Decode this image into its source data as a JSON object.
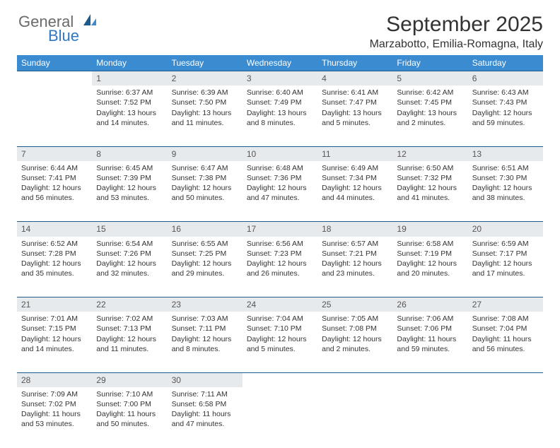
{
  "brand": {
    "part1": "General",
    "part2": "Blue",
    "color1": "#6a6a6a",
    "color2": "#2f78c4"
  },
  "header": {
    "month": "September 2025",
    "location": "Marzabotto, Emilia-Romagna, Italy"
  },
  "colors": {
    "header_bg": "#3b8bd0",
    "header_text": "#ffffff",
    "daynum_bg": "#e7eaed",
    "rule": "#1f5a8a"
  },
  "weekdays": [
    "Sunday",
    "Monday",
    "Tuesday",
    "Wednesday",
    "Thursday",
    "Friday",
    "Saturday"
  ],
  "weeks": [
    [
      null,
      {
        "n": "1",
        "sunrise": "6:37 AM",
        "sunset": "7:52 PM",
        "daylight": "13 hours and 14 minutes."
      },
      {
        "n": "2",
        "sunrise": "6:39 AM",
        "sunset": "7:50 PM",
        "daylight": "13 hours and 11 minutes."
      },
      {
        "n": "3",
        "sunrise": "6:40 AM",
        "sunset": "7:49 PM",
        "daylight": "13 hours and 8 minutes."
      },
      {
        "n": "4",
        "sunrise": "6:41 AM",
        "sunset": "7:47 PM",
        "daylight": "13 hours and 5 minutes."
      },
      {
        "n": "5",
        "sunrise": "6:42 AM",
        "sunset": "7:45 PM",
        "daylight": "13 hours and 2 minutes."
      },
      {
        "n": "6",
        "sunrise": "6:43 AM",
        "sunset": "7:43 PM",
        "daylight": "12 hours and 59 minutes."
      }
    ],
    [
      {
        "n": "7",
        "sunrise": "6:44 AM",
        "sunset": "7:41 PM",
        "daylight": "12 hours and 56 minutes."
      },
      {
        "n": "8",
        "sunrise": "6:45 AM",
        "sunset": "7:39 PM",
        "daylight": "12 hours and 53 minutes."
      },
      {
        "n": "9",
        "sunrise": "6:47 AM",
        "sunset": "7:38 PM",
        "daylight": "12 hours and 50 minutes."
      },
      {
        "n": "10",
        "sunrise": "6:48 AM",
        "sunset": "7:36 PM",
        "daylight": "12 hours and 47 minutes."
      },
      {
        "n": "11",
        "sunrise": "6:49 AM",
        "sunset": "7:34 PM",
        "daylight": "12 hours and 44 minutes."
      },
      {
        "n": "12",
        "sunrise": "6:50 AM",
        "sunset": "7:32 PM",
        "daylight": "12 hours and 41 minutes."
      },
      {
        "n": "13",
        "sunrise": "6:51 AM",
        "sunset": "7:30 PM",
        "daylight": "12 hours and 38 minutes."
      }
    ],
    [
      {
        "n": "14",
        "sunrise": "6:52 AM",
        "sunset": "7:28 PM",
        "daylight": "12 hours and 35 minutes."
      },
      {
        "n": "15",
        "sunrise": "6:54 AM",
        "sunset": "7:26 PM",
        "daylight": "12 hours and 32 minutes."
      },
      {
        "n": "16",
        "sunrise": "6:55 AM",
        "sunset": "7:25 PM",
        "daylight": "12 hours and 29 minutes."
      },
      {
        "n": "17",
        "sunrise": "6:56 AM",
        "sunset": "7:23 PM",
        "daylight": "12 hours and 26 minutes."
      },
      {
        "n": "18",
        "sunrise": "6:57 AM",
        "sunset": "7:21 PM",
        "daylight": "12 hours and 23 minutes."
      },
      {
        "n": "19",
        "sunrise": "6:58 AM",
        "sunset": "7:19 PM",
        "daylight": "12 hours and 20 minutes."
      },
      {
        "n": "20",
        "sunrise": "6:59 AM",
        "sunset": "7:17 PM",
        "daylight": "12 hours and 17 minutes."
      }
    ],
    [
      {
        "n": "21",
        "sunrise": "7:01 AM",
        "sunset": "7:15 PM",
        "daylight": "12 hours and 14 minutes."
      },
      {
        "n": "22",
        "sunrise": "7:02 AM",
        "sunset": "7:13 PM",
        "daylight": "12 hours and 11 minutes."
      },
      {
        "n": "23",
        "sunrise": "7:03 AM",
        "sunset": "7:11 PM",
        "daylight": "12 hours and 8 minutes."
      },
      {
        "n": "24",
        "sunrise": "7:04 AM",
        "sunset": "7:10 PM",
        "daylight": "12 hours and 5 minutes."
      },
      {
        "n": "25",
        "sunrise": "7:05 AM",
        "sunset": "7:08 PM",
        "daylight": "12 hours and 2 minutes."
      },
      {
        "n": "26",
        "sunrise": "7:06 AM",
        "sunset": "7:06 PM",
        "daylight": "11 hours and 59 minutes."
      },
      {
        "n": "27",
        "sunrise": "7:08 AM",
        "sunset": "7:04 PM",
        "daylight": "11 hours and 56 minutes."
      }
    ],
    [
      {
        "n": "28",
        "sunrise": "7:09 AM",
        "sunset": "7:02 PM",
        "daylight": "11 hours and 53 minutes."
      },
      {
        "n": "29",
        "sunrise": "7:10 AM",
        "sunset": "7:00 PM",
        "daylight": "11 hours and 50 minutes."
      },
      {
        "n": "30",
        "sunrise": "7:11 AM",
        "sunset": "6:58 PM",
        "daylight": "11 hours and 47 minutes."
      },
      null,
      null,
      null,
      null
    ]
  ],
  "labels": {
    "sunrise_prefix": "Sunrise: ",
    "sunset_prefix": "Sunset: ",
    "daylight_prefix": "Daylight: "
  }
}
